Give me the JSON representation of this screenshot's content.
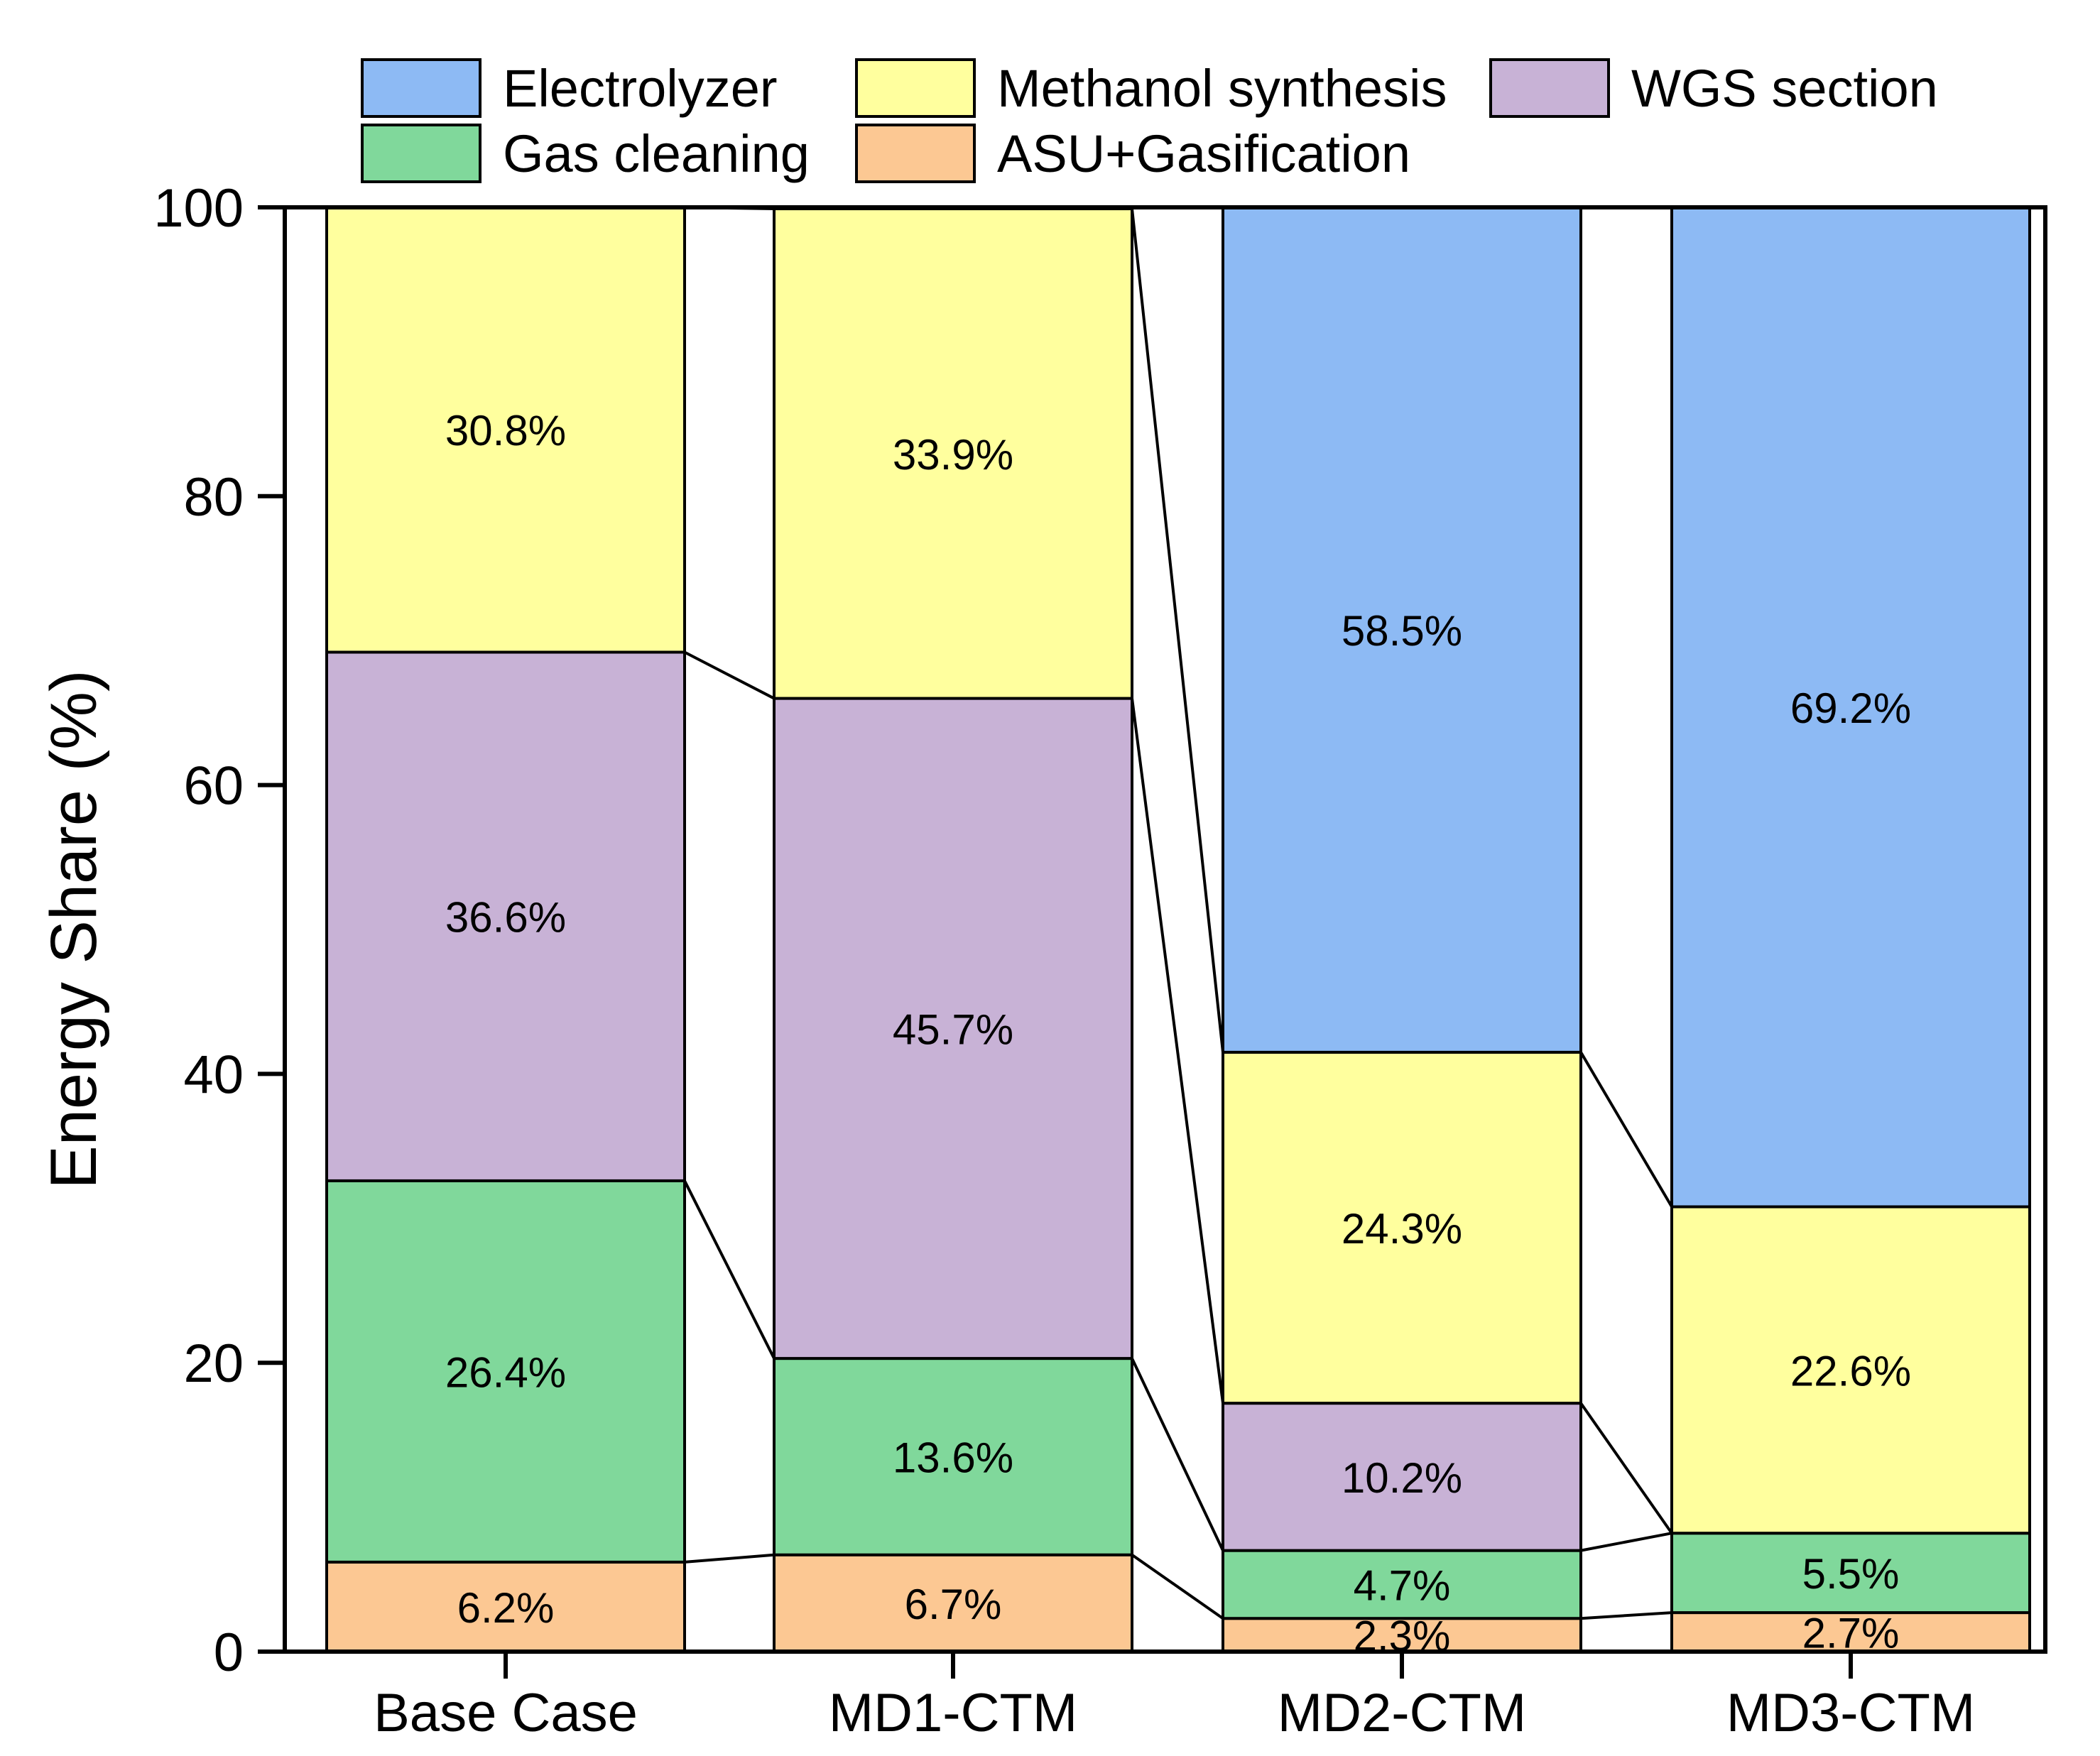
{
  "chart_data": {
    "type": "bar",
    "stacked": true,
    "ylabel": "Energy Share (%)",
    "xlabel": "",
    "ylim": [
      0,
      100
    ],
    "yticks": [
      0,
      20,
      40,
      60,
      80,
      100
    ],
    "categories": [
      "Base Case",
      "MD1-CTM",
      "MD2-CTM",
      "MD3-CTM"
    ],
    "series": [
      {
        "name": "ASU+Gasification",
        "color": "#FCC893",
        "values": [
          6.2,
          6.7,
          2.3,
          2.7
        ],
        "labels": [
          "6.2%",
          "6.7%",
          "2.3%",
          "2.7%"
        ]
      },
      {
        "name": "Gas cleaning",
        "color": "#80D89B",
        "values": [
          26.4,
          13.6,
          4.7,
          5.5
        ],
        "labels": [
          "26.4%",
          "13.6%",
          "4.7%",
          "5.5%"
        ]
      },
      {
        "name": "WGS section",
        "color": "#C8B2D6",
        "values": [
          36.6,
          45.7,
          10.2,
          0
        ],
        "labels": [
          "36.6%",
          "45.7%",
          "10.2%",
          ""
        ]
      },
      {
        "name": "Methanol synthesis",
        "color": "#FFFF9E",
        "values": [
          30.8,
          33.9,
          24.3,
          22.6
        ],
        "labels": [
          "30.8%",
          "33.9%",
          "24.3%",
          "22.6%"
        ]
      },
      {
        "name": "Electrolyzer",
        "color": "#8DBAF4",
        "values": [
          0,
          0,
          58.5,
          69.2
        ],
        "labels": [
          "",
          "",
          "58.5%",
          "69.2%"
        ]
      }
    ],
    "legend": {
      "placement": "top",
      "rows": [
        [
          "Electrolyzer",
          "Methanol synthesis",
          "WGS section"
        ],
        [
          "Gas cleaning",
          "ASU+Gasification"
        ]
      ]
    },
    "connector_lines": true
  }
}
